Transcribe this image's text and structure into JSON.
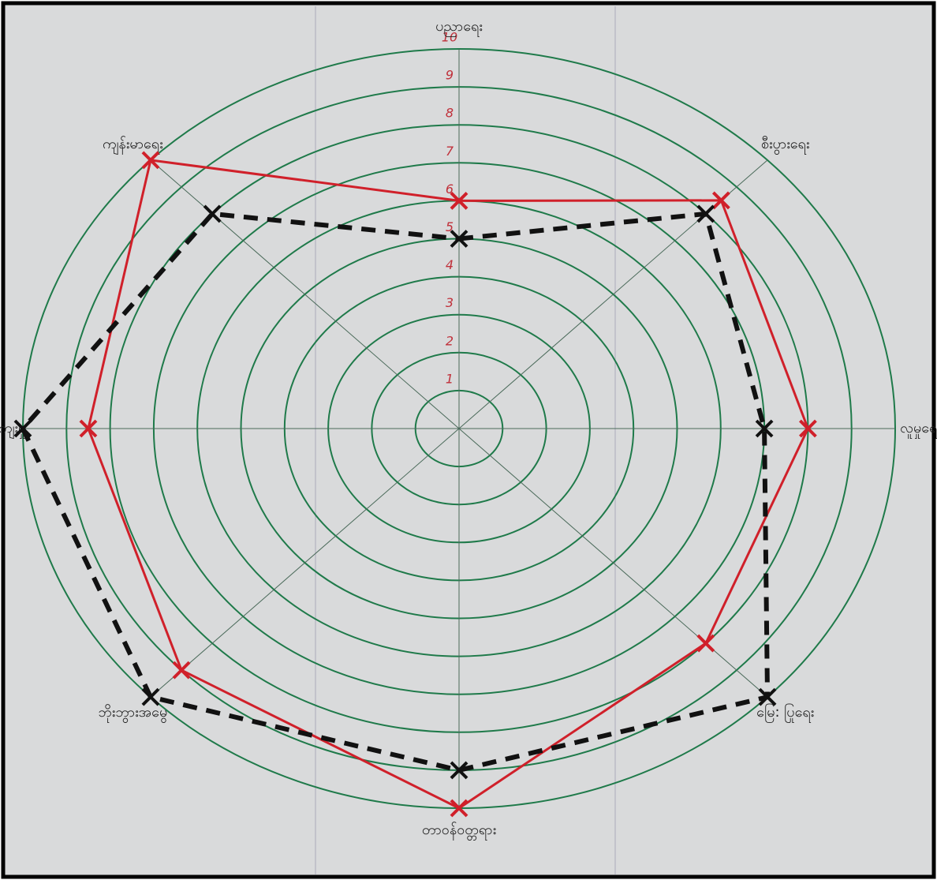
{
  "chart_data": {
    "type": "radar",
    "categories": [
      "ပညာရေး",
      "စီးပွားရေး",
      "လူမှုရေး",
      "မြေ: ပြုရေး",
      "တာဝန်ဝတ္တရား",
      "ဘိုးဘွားအမွေ",
      "ယဉ်ကျေးမှု",
      "ကျန်းမာရေး"
    ],
    "series": [
      {
        "color": "#d0202a",
        "values": [
          6,
          8.5,
          8,
          8,
          10,
          9,
          8.5,
          10
        ]
      },
      {
        "color": "#111111",
        "values": [
          5,
          8,
          7,
          10,
          9,
          10,
          10,
          8
        ]
      }
    ],
    "rlim": [
      0,
      10
    ],
    "rticks": [
      1,
      2,
      3,
      4,
      5,
      6,
      7,
      8,
      9,
      10
    ],
    "ring_color": "#1f7a4a",
    "tick_color": "#c0303a"
  }
}
